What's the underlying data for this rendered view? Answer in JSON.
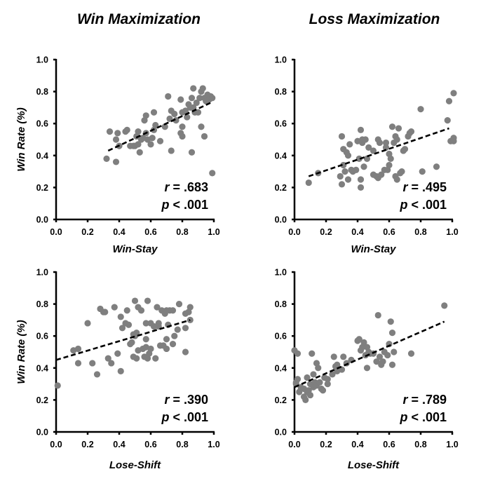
{
  "columns": [
    {
      "title": "Win Maximization"
    },
    {
      "title": "Loss Maximization"
    }
  ],
  "chart_data": [
    {
      "type": "scatter",
      "title": "Win Maximization",
      "xlabel": "Win-Stay",
      "ylabel": "Win Rate (%)",
      "xlim": [
        0,
        1
      ],
      "ylim": [
        0,
        1
      ],
      "xticks": [
        "0.0",
        "0.2",
        "0.4",
        "0.6",
        "0.8",
        "1.0"
      ],
      "yticks": [
        "0.0",
        "0.2",
        "0.4",
        "0.6",
        "0.8",
        "1.0"
      ],
      "grid": false,
      "stat_r": "= .683",
      "stat_p": "< .001",
      "trendline": {
        "x": [
          0.33,
          0.98
        ],
        "y": [
          0.43,
          0.73
        ]
      },
      "points": [
        [
          0.32,
          0.38
        ],
        [
          0.34,
          0.55
        ],
        [
          0.38,
          0.36
        ],
        [
          0.38,
          0.5
        ],
        [
          0.39,
          0.54
        ],
        [
          0.4,
          0.46
        ],
        [
          0.44,
          0.55
        ],
        [
          0.45,
          0.56
        ],
        [
          0.47,
          0.46
        ],
        [
          0.49,
          0.46
        ],
        [
          0.5,
          0.46
        ],
        [
          0.51,
          0.52
        ],
        [
          0.52,
          0.47
        ],
        [
          0.52,
          0.55
        ],
        [
          0.53,
          0.42
        ],
        [
          0.54,
          0.5
        ],
        [
          0.55,
          0.51
        ],
        [
          0.56,
          0.62
        ],
        [
          0.57,
          0.65
        ],
        [
          0.57,
          0.54
        ],
        [
          0.58,
          0.5
        ],
        [
          0.6,
          0.47
        ],
        [
          0.61,
          0.51
        ],
        [
          0.62,
          0.56
        ],
        [
          0.62,
          0.67
        ],
        [
          0.63,
          0.59
        ],
        [
          0.66,
          0.49
        ],
        [
          0.69,
          0.58
        ],
        [
          0.71,
          0.77
        ],
        [
          0.72,
          0.63
        ],
        [
          0.73,
          0.68
        ],
        [
          0.73,
          0.43
        ],
        [
          0.75,
          0.66
        ],
        [
          0.76,
          0.62
        ],
        [
          0.79,
          0.54
        ],
        [
          0.79,
          0.75
        ],
        [
          0.8,
          0.58
        ],
        [
          0.8,
          0.52
        ],
        [
          0.8,
          0.67
        ],
        [
          0.82,
          0.68
        ],
        [
          0.83,
          0.64
        ],
        [
          0.84,
          0.72
        ],
        [
          0.85,
          0.7
        ],
        [
          0.86,
          0.42
        ],
        [
          0.86,
          0.76
        ],
        [
          0.87,
          0.82
        ],
        [
          0.87,
          0.7
        ],
        [
          0.88,
          0.67
        ],
        [
          0.89,
          0.73
        ],
        [
          0.9,
          0.67
        ],
        [
          0.91,
          0.76
        ],
        [
          0.92,
          0.58
        ],
        [
          0.92,
          0.8
        ],
        [
          0.93,
          0.82
        ],
        [
          0.94,
          0.52
        ],
        [
          0.94,
          0.76
        ],
        [
          0.95,
          0.74
        ],
        [
          0.96,
          0.78
        ],
        [
          0.97,
          0.75
        ],
        [
          0.98,
          0.77
        ],
        [
          0.99,
          0.76
        ],
        [
          0.99,
          0.29
        ]
      ]
    },
    {
      "type": "scatter",
      "title": "Loss Maximization",
      "xlabel": "Win-Stay",
      "ylabel": "",
      "xlim": [
        0,
        1
      ],
      "ylim": [
        0,
        1
      ],
      "xticks": [
        "0.0",
        "0.2",
        "0.4",
        "0.6",
        "0.8",
        "1.0"
      ],
      "yticks": [
        "0.0",
        "0.2",
        "0.4",
        "0.6",
        "0.8",
        "1.0"
      ],
      "grid": false,
      "stat_r": "= .495",
      "stat_p": "< .001",
      "trendline": {
        "x": [
          0.09,
          0.98
        ],
        "y": [
          0.27,
          0.57
        ]
      },
      "points": [
        [
          0.09,
          0.23
        ],
        [
          0.15,
          0.29
        ],
        [
          0.29,
          0.27
        ],
        [
          0.3,
          0.22
        ],
        [
          0.3,
          0.52
        ],
        [
          0.31,
          0.34
        ],
        [
          0.31,
          0.44
        ],
        [
          0.32,
          0.3
        ],
        [
          0.33,
          0.42
        ],
        [
          0.34,
          0.25
        ],
        [
          0.34,
          0.4
        ],
        [
          0.35,
          0.47
        ],
        [
          0.36,
          0.31
        ],
        [
          0.37,
          0.3
        ],
        [
          0.39,
          0.31
        ],
        [
          0.4,
          0.49
        ],
        [
          0.41,
          0.38
        ],
        [
          0.42,
          0.2
        ],
        [
          0.42,
          0.25
        ],
        [
          0.42,
          0.56
        ],
        [
          0.43,
          0.48
        ],
        [
          0.43,
          0.5
        ],
        [
          0.44,
          0.33
        ],
        [
          0.45,
          0.5
        ],
        [
          0.46,
          0.38
        ],
        [
          0.47,
          0.45
        ],
        [
          0.5,
          0.28
        ],
        [
          0.5,
          0.43
        ],
        [
          0.52,
          0.27
        ],
        [
          0.53,
          0.5
        ],
        [
          0.53,
          0.26
        ],
        [
          0.54,
          0.48
        ],
        [
          0.55,
          0.28
        ],
        [
          0.57,
          0.31
        ],
        [
          0.58,
          0.48
        ],
        [
          0.58,
          0.45
        ],
        [
          0.59,
          0.31
        ],
        [
          0.6,
          0.41
        ],
        [
          0.6,
          0.34
        ],
        [
          0.61,
          0.38
        ],
        [
          0.62,
          0.58
        ],
        [
          0.63,
          0.48
        ],
        [
          0.64,
          0.52
        ],
        [
          0.64,
          0.27
        ],
        [
          0.65,
          0.5
        ],
        [
          0.65,
          0.25
        ],
        [
          0.66,
          0.57
        ],
        [
          0.67,
          0.29
        ],
        [
          0.68,
          0.3
        ],
        [
          0.69,
          0.43
        ],
        [
          0.7,
          0.44
        ],
        [
          0.72,
          0.52
        ],
        [
          0.73,
          0.54
        ],
        [
          0.74,
          0.55
        ],
        [
          0.8,
          0.69
        ],
        [
          0.81,
          0.3
        ],
        [
          0.9,
          0.33
        ],
        [
          0.97,
          0.62
        ],
        [
          0.98,
          0.74
        ],
        [
          0.99,
          0.49
        ],
        [
          1.05,
          0.51
        ],
        [
          1.08,
          0.49
        ],
        [
          1.09,
          0.79
        ]
      ]
    },
    {
      "type": "scatter",
      "title": "",
      "xlabel": "Lose-Shift",
      "ylabel": "Win Rate (%)",
      "xlim": [
        0,
        1
      ],
      "ylim": [
        0,
        1
      ],
      "xticks": [
        "0.0",
        "0.2",
        "0.4",
        "0.6",
        "0.8",
        "1.0"
      ],
      "yticks": [
        "0.0",
        "0.2",
        "0.4",
        "0.6",
        "0.8",
        "1.0"
      ],
      "grid": false,
      "stat_r": "= .390",
      "stat_p": "< .001",
      "trendline": {
        "x": [
          0.0,
          0.85
        ],
        "y": [
          0.45,
          0.7
        ]
      },
      "points": [
        [
          0.01,
          0.29
        ],
        [
          0.11,
          0.51
        ],
        [
          0.14,
          0.52
        ],
        [
          0.14,
          0.43
        ],
        [
          0.2,
          0.68
        ],
        [
          0.23,
          0.43
        ],
        [
          0.26,
          0.36
        ],
        [
          0.28,
          0.77
        ],
        [
          0.3,
          0.75
        ],
        [
          0.31,
          0.75
        ],
        [
          0.33,
          0.46
        ],
        [
          0.35,
          0.43
        ],
        [
          0.37,
          0.78
        ],
        [
          0.39,
          0.49
        ],
        [
          0.41,
          0.38
        ],
        [
          0.41,
          0.72
        ],
        [
          0.42,
          0.65
        ],
        [
          0.44,
          0.68
        ],
        [
          0.45,
          0.76
        ],
        [
          0.46,
          0.67
        ],
        [
          0.47,
          0.55
        ],
        [
          0.48,
          0.56
        ],
        [
          0.49,
          0.47
        ],
        [
          0.49,
          0.61
        ],
        [
          0.5,
          0.6
        ],
        [
          0.5,
          0.82
        ],
        [
          0.51,
          0.46
        ],
        [
          0.51,
          0.62
        ],
        [
          0.52,
          0.78
        ],
        [
          0.52,
          0.51
        ],
        [
          0.54,
          0.76
        ],
        [
          0.55,
          0.52
        ],
        [
          0.56,
          0.47
        ],
        [
          0.57,
          0.53
        ],
        [
          0.57,
          0.58
        ],
        [
          0.57,
          0.68
        ],
        [
          0.58,
          0.82
        ],
        [
          0.58,
          0.46
        ],
        [
          0.59,
          0.49
        ],
        [
          0.6,
          0.68
        ],
        [
          0.6,
          0.52
        ],
        [
          0.62,
          0.66
        ],
        [
          0.63,
          0.46
        ],
        [
          0.64,
          0.78
        ],
        [
          0.65,
          0.68
        ],
        [
          0.65,
          0.66
        ],
        [
          0.66,
          0.54
        ],
        [
          0.67,
          0.76
        ],
        [
          0.68,
          0.54
        ],
        [
          0.69,
          0.74
        ],
        [
          0.7,
          0.58
        ],
        [
          0.7,
          0.76
        ],
        [
          0.7,
          0.52
        ],
        [
          0.71,
          0.67
        ],
        [
          0.72,
          0.76
        ],
        [
          0.74,
          0.76
        ],
        [
          0.74,
          0.55
        ],
        [
          0.75,
          0.6
        ],
        [
          0.77,
          0.64
        ],
        [
          0.78,
          0.8
        ],
        [
          0.82,
          0.5
        ],
        [
          0.82,
          0.65
        ],
        [
          0.82,
          0.74
        ],
        [
          0.84,
          0.75
        ],
        [
          0.85,
          0.78
        ],
        [
          0.85,
          0.7
        ]
      ]
    },
    {
      "type": "scatter",
      "title": "",
      "xlabel": "Lose-Shift",
      "ylabel": "",
      "xlim": [
        0,
        1
      ],
      "ylim": [
        0,
        1
      ],
      "xticks": [
        "0.0",
        "0.2",
        "0.4",
        "0.6",
        "0.8",
        "1.0"
      ],
      "yticks": [
        "0.0",
        "0.2",
        "0.4",
        "0.6",
        "0.8",
        "1.0"
      ],
      "grid": false,
      "stat_r": "= .789",
      "stat_p": "< .001",
      "trendline": {
        "x": [
          0.0,
          0.95
        ],
        "y": [
          0.28,
          0.69
        ]
      },
      "points": [
        [
          0.0,
          0.51
        ],
        [
          0.01,
          0.3
        ],
        [
          0.01,
          0.31
        ],
        [
          0.02,
          0.33
        ],
        [
          0.02,
          0.49
        ],
        [
          0.03,
          0.25
        ],
        [
          0.04,
          0.28
        ],
        [
          0.06,
          0.27
        ],
        [
          0.06,
          0.22
        ],
        [
          0.07,
          0.2
        ],
        [
          0.08,
          0.25
        ],
        [
          0.08,
          0.34
        ],
        [
          0.09,
          0.26
        ],
        [
          0.1,
          0.23
        ],
        [
          0.1,
          0.3
        ],
        [
          0.11,
          0.49
        ],
        [
          0.12,
          0.28
        ],
        [
          0.12,
          0.36
        ],
        [
          0.13,
          0.31
        ],
        [
          0.14,
          0.29
        ],
        [
          0.14,
          0.43
        ],
        [
          0.15,
          0.4
        ],
        [
          0.16,
          0.31
        ],
        [
          0.17,
          0.27
        ],
        [
          0.18,
          0.26
        ],
        [
          0.19,
          0.34
        ],
        [
          0.21,
          0.3
        ],
        [
          0.21,
          0.33
        ],
        [
          0.24,
          0.36
        ],
        [
          0.25,
          0.47
        ],
        [
          0.26,
          0.41
        ],
        [
          0.27,
          0.42
        ],
        [
          0.27,
          0.38
        ],
        [
          0.3,
          0.39
        ],
        [
          0.31,
          0.47
        ],
        [
          0.33,
          0.43
        ],
        [
          0.36,
          0.45
        ],
        [
          0.4,
          0.57
        ],
        [
          0.41,
          0.58
        ],
        [
          0.42,
          0.51
        ],
        [
          0.43,
          0.53
        ],
        [
          0.44,
          0.56
        ],
        [
          0.45,
          0.48
        ],
        [
          0.46,
          0.4
        ],
        [
          0.46,
          0.53
        ],
        [
          0.47,
          0.5
        ],
        [
          0.48,
          0.49
        ],
        [
          0.5,
          0.49
        ],
        [
          0.52,
          0.44
        ],
        [
          0.53,
          0.73
        ],
        [
          0.54,
          0.47
        ],
        [
          0.55,
          0.42
        ],
        [
          0.56,
          0.44
        ],
        [
          0.57,
          0.5
        ],
        [
          0.59,
          0.48
        ],
        [
          0.6,
          0.55
        ],
        [
          0.61,
          0.69
        ],
        [
          0.62,
          0.42
        ],
        [
          0.62,
          0.62
        ],
        [
          0.63,
          0.5
        ],
        [
          0.74,
          0.49
        ],
        [
          0.95,
          0.79
        ]
      ]
    }
  ]
}
